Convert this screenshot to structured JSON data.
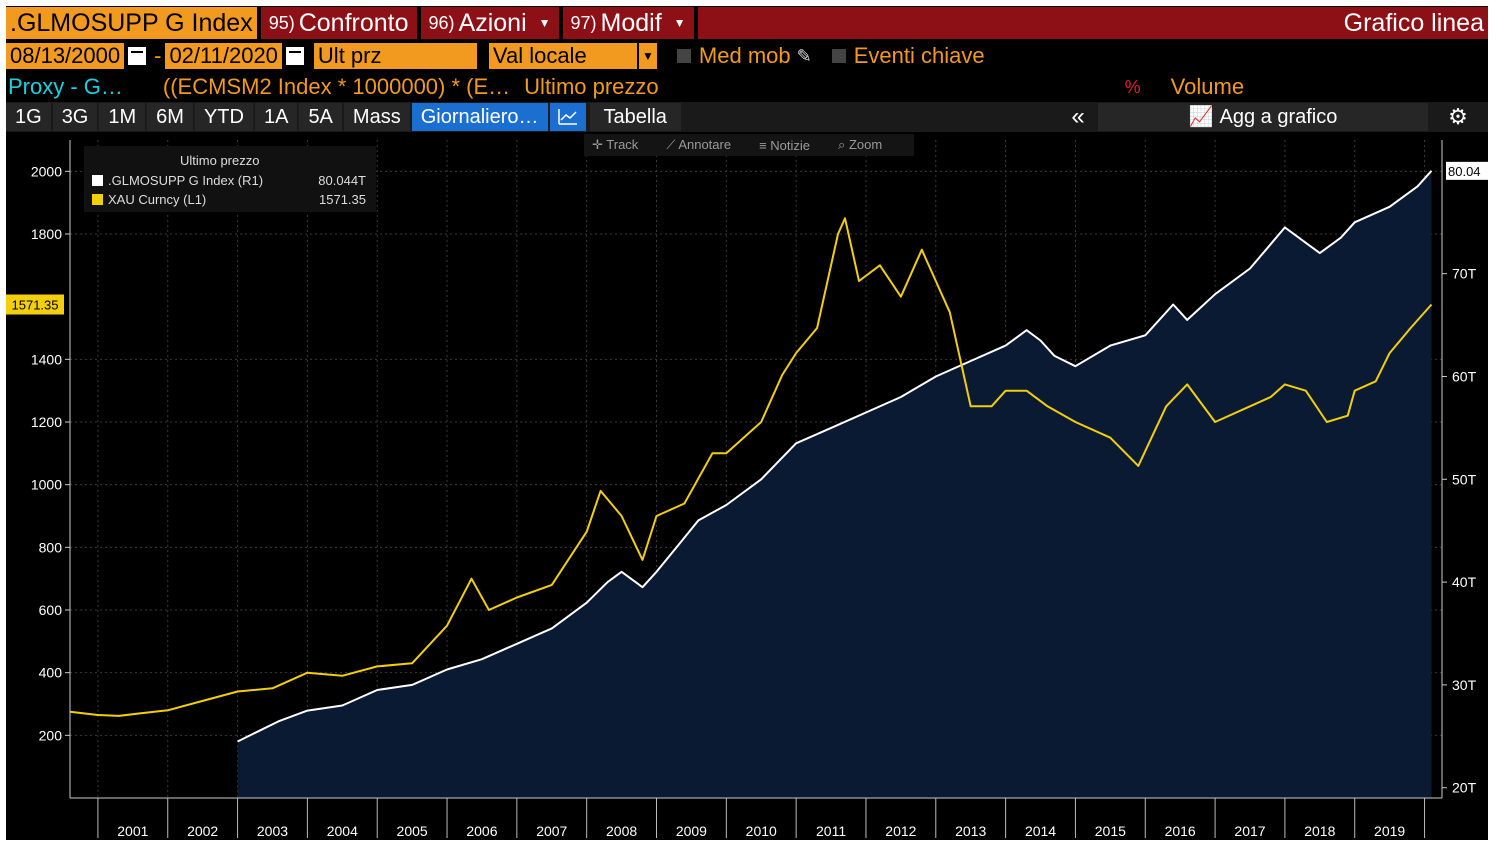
{
  "toolbar": {
    "ticker": ".GLMOSUPP G Index",
    "cmd1_num": "95)",
    "cmd1_label": "Confronto",
    "cmd2_num": "96)",
    "cmd2_label": "Azioni",
    "cmd3_num": "97)",
    "cmd3_label": "Modif",
    "title": "Grafico linea"
  },
  "fields": {
    "start_date": "08/13/2000",
    "end_date": "02/11/2020",
    "price_field": "Ult prz",
    "currency": "Val locale",
    "moving_avg": "Med mob",
    "key_events": "Eventi chiave"
  },
  "info": {
    "proxy": "Proxy - G…",
    "formula": "((ECMSM2 Index * 1000000) * (E…",
    "last_price": "Ultimo prezzo",
    "volume": "Volume"
  },
  "tabs": [
    "1G",
    "3G",
    "1M",
    "6M",
    "YTD",
    "1A",
    "5A",
    "Mass"
  ],
  "period": "Giornaliero…",
  "table_label": "Tabella",
  "collapse": "«",
  "add_label": "Agg a grafico",
  "chart_tools": [
    "Track",
    "Annotare",
    "Notizie",
    "Zoom"
  ],
  "colors": {
    "gold": "#f2cf0a",
    "white": "#ffffff",
    "area": "#0b1a33",
    "amber": "#f29a1f"
  },
  "chart_data": {
    "type": "line",
    "legend_title": "Ultimo prezzo",
    "x_tick_labels": [
      "2001",
      "2002",
      "2003",
      "2004",
      "2005",
      "2006",
      "2007",
      "2008",
      "2009",
      "2010",
      "2011",
      "2012",
      "2013",
      "2014",
      "2015",
      "2016",
      "2017",
      "2018",
      "2019"
    ],
    "left_axis": {
      "ticks": [
        200,
        400,
        600,
        800,
        1000,
        1200,
        1400,
        1800,
        2000
      ],
      "range": [
        0,
        2100
      ]
    },
    "right_axis": {
      "ticks": [
        "20T",
        "30T",
        "40T",
        "50T",
        "60T",
        "70T"
      ],
      "tick_values": [
        20,
        30,
        40,
        50,
        60,
        70
      ],
      "range": [
        19,
        83
      ]
    },
    "left_label": "1571.35",
    "right_label": "80.04",
    "series": [
      {
        "name": ".GLMOSUPP G Index (R1)",
        "value_label": "80.044T",
        "axis": "right",
        "color": "#ffffff",
        "fill": true,
        "x": [
          2003.0,
          2003.3,
          2003.6,
          2004.0,
          2004.5,
          2005.0,
          2005.5,
          2006.0,
          2006.5,
          2007.0,
          2007.5,
          2008.0,
          2008.3,
          2008.5,
          2008.8,
          2009.0,
          2009.3,
          2009.6,
          2010.0,
          2010.5,
          2011.0,
          2011.5,
          2012.0,
          2012.5,
          2013.0,
          2013.5,
          2014.0,
          2014.3,
          2014.5,
          2014.7,
          2015.0,
          2015.5,
          2016.0,
          2016.4,
          2016.6,
          2017.0,
          2017.5,
          2018.0,
          2018.3,
          2018.5,
          2018.8,
          2019.0,
          2019.5,
          2019.9,
          2020.1
        ],
        "values": [
          24.5,
          25.5,
          26.5,
          27.5,
          28,
          29.5,
          30,
          31.5,
          32.5,
          34,
          35.5,
          38,
          40,
          41,
          39.5,
          41,
          43.5,
          46,
          47.5,
          50,
          53.5,
          55,
          56.5,
          58,
          60,
          61.5,
          63,
          64.5,
          63.5,
          62,
          61,
          63,
          64,
          67,
          65.5,
          68,
          70.5,
          74.5,
          73,
          72,
          73.5,
          75,
          76.5,
          78.5,
          80
        ]
      },
      {
        "name": "XAU Curncy (L1)",
        "value_label": "1571.35",
        "axis": "left",
        "color": "#f2cf0a",
        "fill": false,
        "x": [
          2000.6,
          2001.0,
          2001.3,
          2001.6,
          2002.0,
          2002.5,
          2003.0,
          2003.5,
          2004.0,
          2004.5,
          2005.0,
          2005.5,
          2006.0,
          2006.35,
          2006.6,
          2007.0,
          2007.5,
          2008.0,
          2008.2,
          2008.5,
          2008.8,
          2009.0,
          2009.4,
          2009.8,
          2010.0,
          2010.5,
          2010.8,
          2011.0,
          2011.3,
          2011.6,
          2011.7,
          2011.9,
          2012.2,
          2012.5,
          2012.8,
          2013.0,
          2013.2,
          2013.5,
          2013.8,
          2014.0,
          2014.3,
          2014.6,
          2015.0,
          2015.5,
          2015.9,
          2016.3,
          2016.6,
          2017.0,
          2017.5,
          2017.8,
          2018.0,
          2018.3,
          2018.6,
          2018.9,
          2019.0,
          2019.3,
          2019.5,
          2019.8,
          2020.1
        ],
        "values": [
          275,
          265,
          262,
          270,
          280,
          310,
          340,
          350,
          400,
          390,
          420,
          430,
          550,
          700,
          600,
          640,
          680,
          850,
          980,
          900,
          760,
          900,
          940,
          1100,
          1100,
          1200,
          1350,
          1420,
          1500,
          1800,
          1850,
          1650,
          1700,
          1600,
          1750,
          1650,
          1550,
          1250,
          1250,
          1300,
          1300,
          1250,
          1200,
          1150,
          1060,
          1250,
          1320,
          1200,
          1250,
          1280,
          1320,
          1300,
          1200,
          1220,
          1300,
          1330,
          1420,
          1500,
          1575
        ]
      }
    ]
  }
}
